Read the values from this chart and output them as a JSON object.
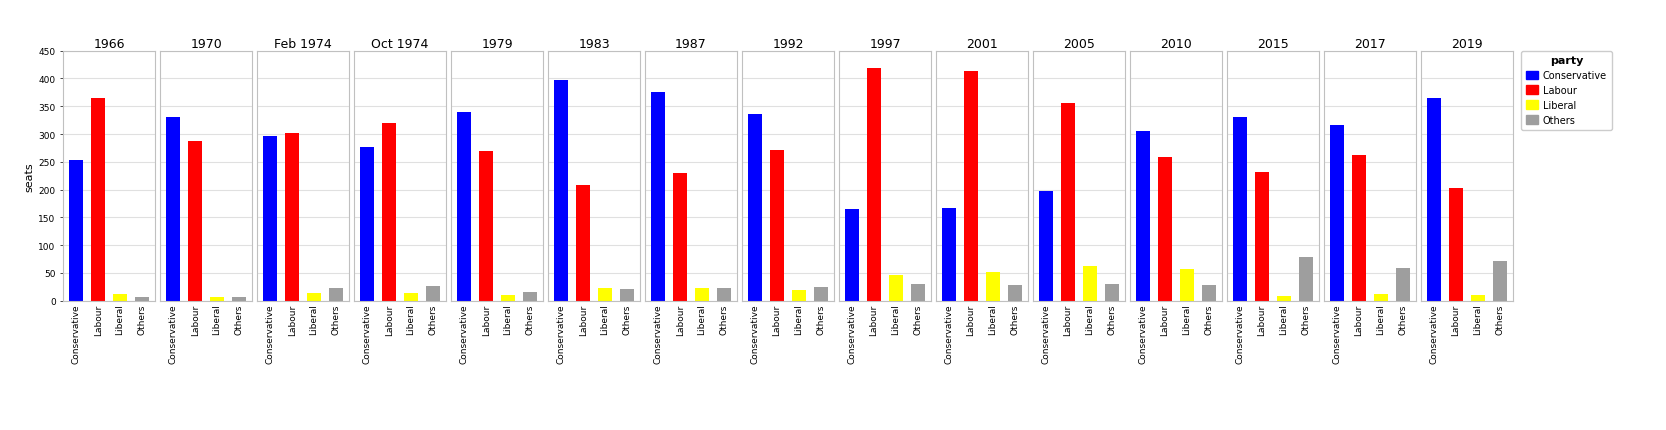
{
  "elections": [
    {
      "year": "1966",
      "Conservative": 253,
      "Labour": 364,
      "Liberal": 12,
      "Others": 6
    },
    {
      "year": "1970",
      "Conservative": 330,
      "Labour": 287,
      "Liberal": 6,
      "Others": 7
    },
    {
      "year": "Feb 1974",
      "Conservative": 297,
      "Labour": 301,
      "Liberal": 14,
      "Others": 23
    },
    {
      "year": "Oct 1974",
      "Conservative": 277,
      "Labour": 319,
      "Liberal": 13,
      "Others": 26
    },
    {
      "year": "1979",
      "Conservative": 339,
      "Labour": 269,
      "Liberal": 11,
      "Others": 16
    },
    {
      "year": "1983",
      "Conservative": 397,
      "Labour": 209,
      "Liberal": 23,
      "Others": 21
    },
    {
      "year": "1987",
      "Conservative": 376,
      "Labour": 229,
      "Liberal": 22,
      "Others": 23
    },
    {
      "year": "1992",
      "Conservative": 336,
      "Labour": 271,
      "Liberal": 20,
      "Others": 24
    },
    {
      "year": "1997",
      "Conservative": 165,
      "Labour": 418,
      "Liberal": 46,
      "Others": 30
    },
    {
      "year": "2001",
      "Conservative": 166,
      "Labour": 413,
      "Liberal": 52,
      "Others": 29
    },
    {
      "year": "2005",
      "Conservative": 198,
      "Labour": 355,
      "Liberal": 62,
      "Others": 30
    },
    {
      "year": "2010",
      "Conservative": 306,
      "Labour": 258,
      "Liberal": 57,
      "Others": 29
    },
    {
      "year": "2015",
      "Conservative": 331,
      "Labour": 232,
      "Liberal": 8,
      "Others": 79
    },
    {
      "year": "2017",
      "Conservative": 317,
      "Labour": 262,
      "Liberal": 12,
      "Others": 59
    },
    {
      "year": "2019",
      "Conservative": 365,
      "Labour": 202,
      "Liberal": 11,
      "Others": 72
    }
  ],
  "parties": [
    "Conservative",
    "Labour",
    "Liberal",
    "Others"
  ],
  "colors": {
    "Conservative": "#0000FF",
    "Labour": "#FF0000",
    "Liberal": "#FFFF00",
    "Others": "#9E9E9E"
  },
  "ylabel": "seats",
  "ylim": [
    0,
    450
  ],
  "yticks": [
    0,
    50,
    100,
    150,
    200,
    250,
    300,
    350,
    400,
    450
  ],
  "background_color": "#FFFFFF",
  "panel_background": "#FFFFFF",
  "panel_border_color": "#C0C0C0",
  "grid_color": "#E0E0E0",
  "title_fontsize": 9,
  "axis_fontsize": 8,
  "tick_fontsize": 6.5,
  "legend_title": "party"
}
